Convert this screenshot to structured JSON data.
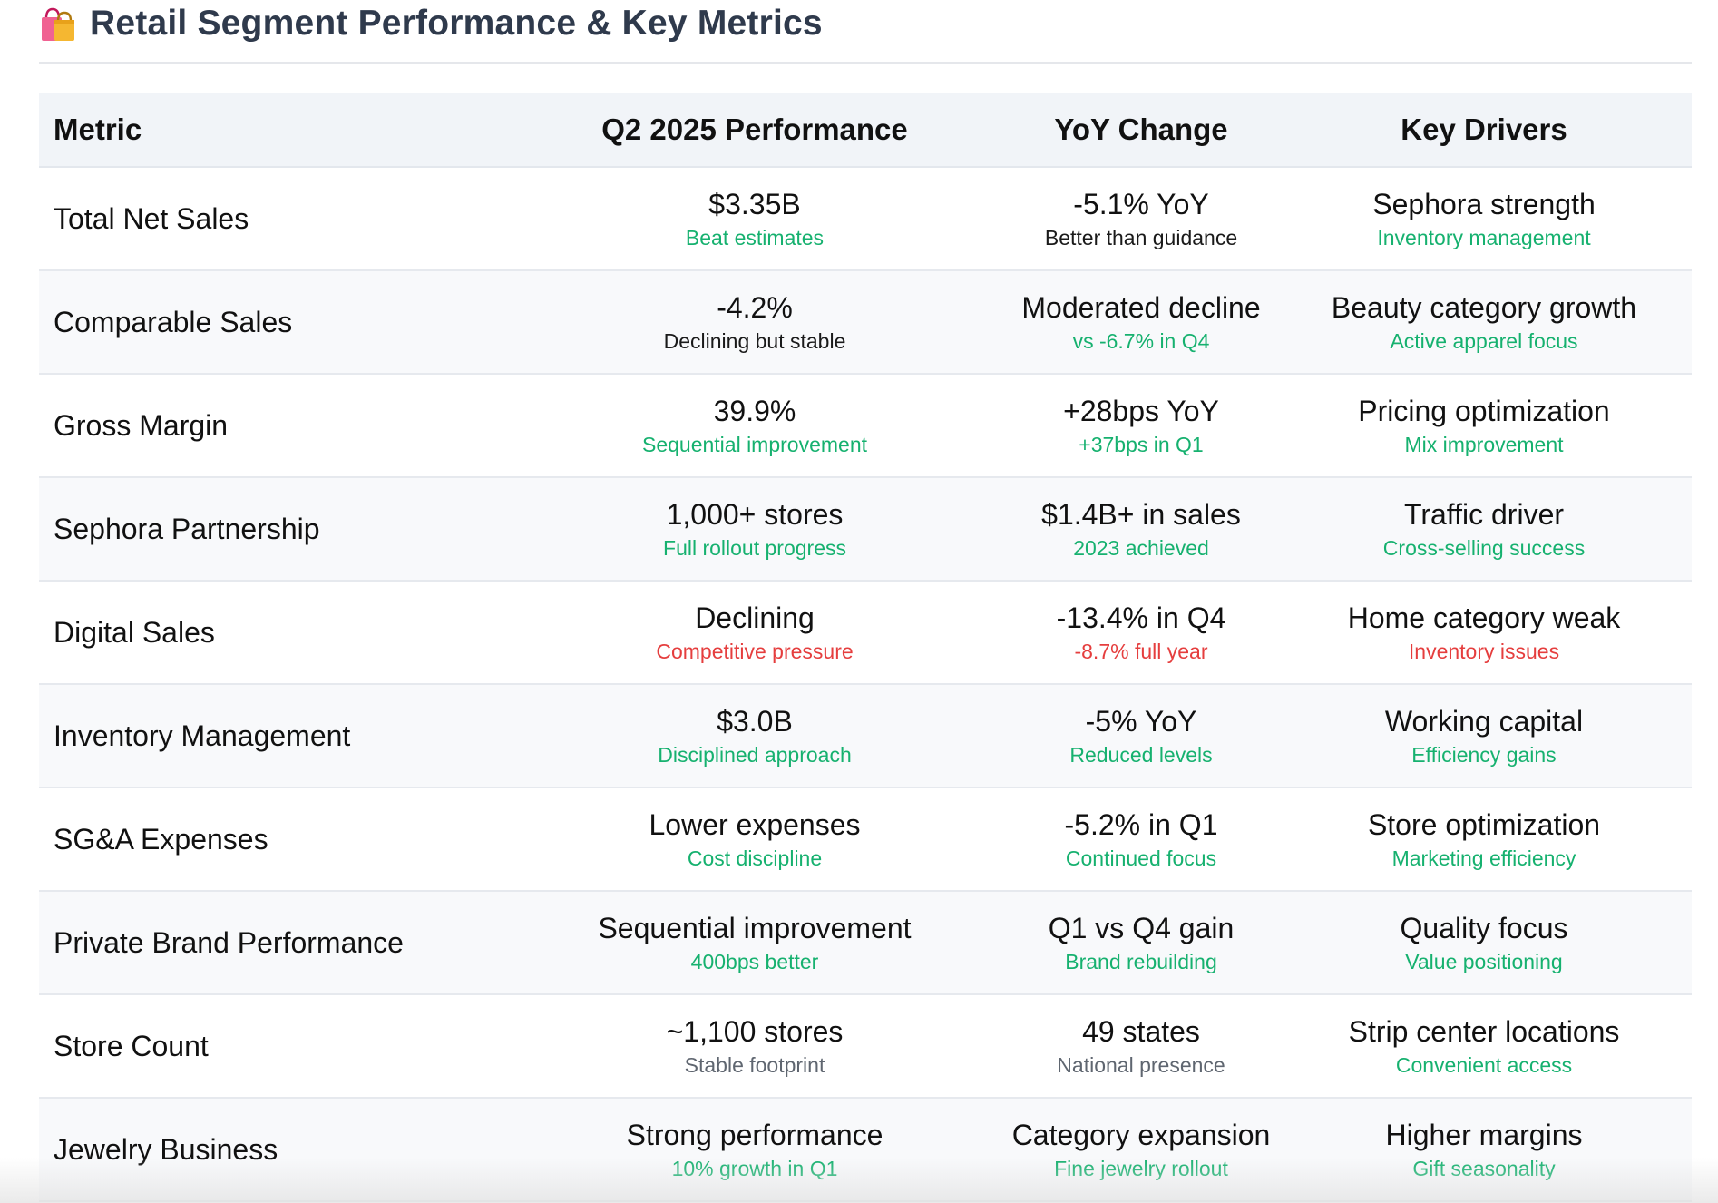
{
  "header": {
    "title": "Retail Segment Performance & Key Metrics",
    "icon": "shopping-bags-icon"
  },
  "colors": {
    "green": "#16b16f",
    "red": "#e53e3e",
    "gray": "#5f6670",
    "title": "#2f3a4c"
  },
  "table": {
    "headers": [
      "Metric",
      "Q2 2025 Performance",
      "YoY Change",
      "Key Drivers"
    ],
    "rows": [
      {
        "metric": "Total Net Sales",
        "perf": {
          "main": "$3.35B",
          "sub": "Beat estimates",
          "tone": "green"
        },
        "yoy": {
          "main": "-5.1% YoY",
          "sub": "Better than guidance",
          "tone": "black"
        },
        "drivers": {
          "main": "Sephora strength",
          "sub": "Inventory management",
          "tone": "green"
        }
      },
      {
        "metric": "Comparable Sales",
        "perf": {
          "main": "-4.2%",
          "sub": "Declining but stable",
          "tone": "black"
        },
        "yoy": {
          "main": "Moderated decline",
          "sub": "vs -6.7% in Q4",
          "tone": "green"
        },
        "drivers": {
          "main": "Beauty category growth",
          "sub": "Active apparel focus",
          "tone": "green"
        }
      },
      {
        "metric": "Gross Margin",
        "perf": {
          "main": "39.9%",
          "sub": "Sequential improvement",
          "tone": "green"
        },
        "yoy": {
          "main": "+28bps YoY",
          "sub": "+37bps in Q1",
          "tone": "green"
        },
        "drivers": {
          "main": "Pricing optimization",
          "sub": "Mix improvement",
          "tone": "green"
        }
      },
      {
        "metric": "Sephora Partnership",
        "perf": {
          "main": "1,000+ stores",
          "sub": "Full rollout progress",
          "tone": "green"
        },
        "yoy": {
          "main": "$1.4B+ in sales",
          "sub": "2023 achieved",
          "tone": "green"
        },
        "drivers": {
          "main": "Traffic driver",
          "sub": "Cross-selling success",
          "tone": "green"
        }
      },
      {
        "metric": "Digital Sales",
        "perf": {
          "main": "Declining",
          "sub": "Competitive pressure",
          "tone": "red"
        },
        "yoy": {
          "main": "-13.4% in Q4",
          "sub": "-8.7% full year",
          "tone": "red"
        },
        "drivers": {
          "main": "Home category weak",
          "sub": "Inventory issues",
          "tone": "red"
        }
      },
      {
        "metric": "Inventory Management",
        "perf": {
          "main": "$3.0B",
          "sub": "Disciplined approach",
          "tone": "green"
        },
        "yoy": {
          "main": "-5% YoY",
          "sub": "Reduced levels",
          "tone": "green"
        },
        "drivers": {
          "main": "Working capital",
          "sub": "Efficiency gains",
          "tone": "green"
        }
      },
      {
        "metric": "SG&A Expenses",
        "perf": {
          "main": "Lower expenses",
          "sub": "Cost discipline",
          "tone": "green"
        },
        "yoy": {
          "main": "-5.2% in Q1",
          "sub": "Continued focus",
          "tone": "green"
        },
        "drivers": {
          "main": "Store optimization",
          "sub": "Marketing efficiency",
          "tone": "green"
        }
      },
      {
        "metric": "Private Brand Performance",
        "perf": {
          "main": "Sequential improvement",
          "sub": "400bps better",
          "tone": "green"
        },
        "yoy": {
          "main": "Q1 vs Q4 gain",
          "sub": "Brand rebuilding",
          "tone": "green"
        },
        "drivers": {
          "main": "Quality focus",
          "sub": "Value positioning",
          "tone": "green"
        }
      },
      {
        "metric": "Store Count",
        "perf": {
          "main": "~1,100 stores",
          "sub": "Stable footprint",
          "tone": "gray"
        },
        "yoy": {
          "main": "49 states",
          "sub": "National presence",
          "tone": "gray"
        },
        "drivers": {
          "main": "Strip center locations",
          "sub": "Convenient access",
          "tone": "green"
        }
      },
      {
        "metric": "Jewelry Business",
        "perf": {
          "main": "Strong performance",
          "sub": "10% growth in Q1",
          "tone": "green"
        },
        "yoy": {
          "main": "Category expansion",
          "sub": "Fine jewelry rollout",
          "tone": "green"
        },
        "drivers": {
          "main": "Higher margins",
          "sub": "Gift seasonality",
          "tone": "green"
        }
      }
    ]
  }
}
